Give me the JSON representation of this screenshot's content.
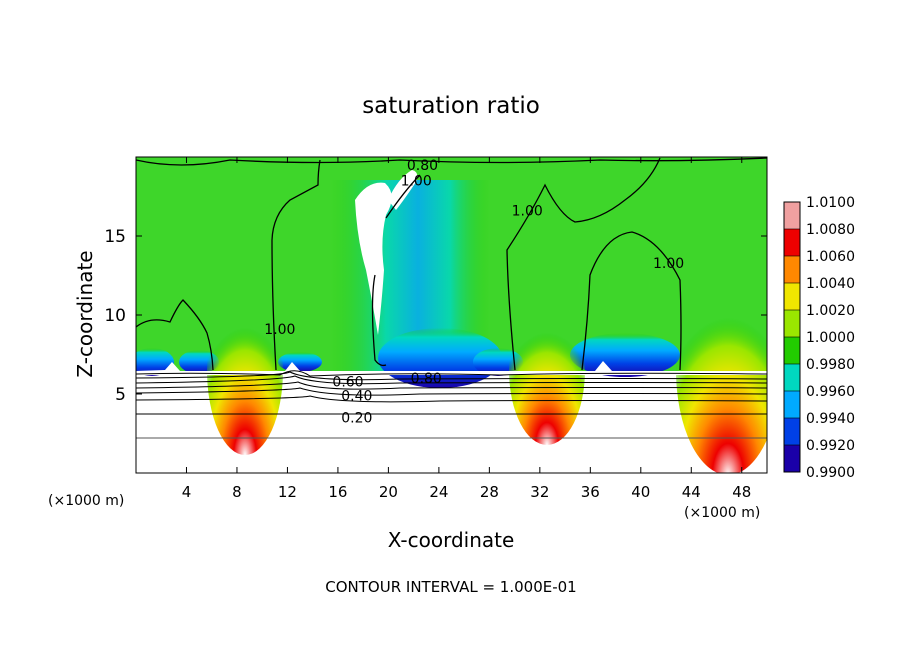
{
  "chart_data": {
    "type": "heatmap",
    "title": "saturation ratio",
    "xlabel": "X-coordinate",
    "ylabel": "Z-coordinate",
    "x_unit_label": "(×1000 m)",
    "xlim": [
      0,
      50
    ],
    "ylim": [
      0,
      20
    ],
    "x_ticks": [
      4,
      8,
      12,
      16,
      20,
      24,
      28,
      32,
      36,
      40,
      44,
      48
    ],
    "y_ticks": [
      5,
      10,
      15
    ],
    "footer": "CONTOUR INTERVAL = 1.000E-01",
    "colorbar": {
      "levels": [
        "0.9900",
        "0.9920",
        "0.9940",
        "0.9960",
        "0.9980",
        "1.0000",
        "1.0020",
        "1.0040",
        "1.0060",
        "1.0080",
        "1.0100"
      ],
      "colors": [
        "#7a1fa0",
        "#1a00a8",
        "#0040e6",
        "#00aaff",
        "#00d8c0",
        "#22cc00",
        "#9ae600",
        "#f0e600",
        "#ff8800",
        "#ee0000",
        "#f0a0a0"
      ]
    },
    "contour_labels": [
      {
        "text": "1.00",
        "x": 11.4,
        "z": 9.1
      },
      {
        "text": "1.00",
        "x": 31.0,
        "z": 16.6
      },
      {
        "text": "1.00",
        "x": 42.2,
        "z": 13.3
      },
      {
        "text": "1.00",
        "x": 22.2,
        "z": 18.5
      },
      {
        "text": "0.80",
        "x": 22.7,
        "z": 19.5
      },
      {
        "text": "0.80",
        "x": 23.0,
        "z": 6.0
      },
      {
        "text": "0.60",
        "x": 16.8,
        "z": 5.8
      },
      {
        "text": "0.40",
        "x": 17.5,
        "z": 4.9
      },
      {
        "text": "0.20",
        "x": 17.5,
        "z": 3.5
      }
    ]
  }
}
